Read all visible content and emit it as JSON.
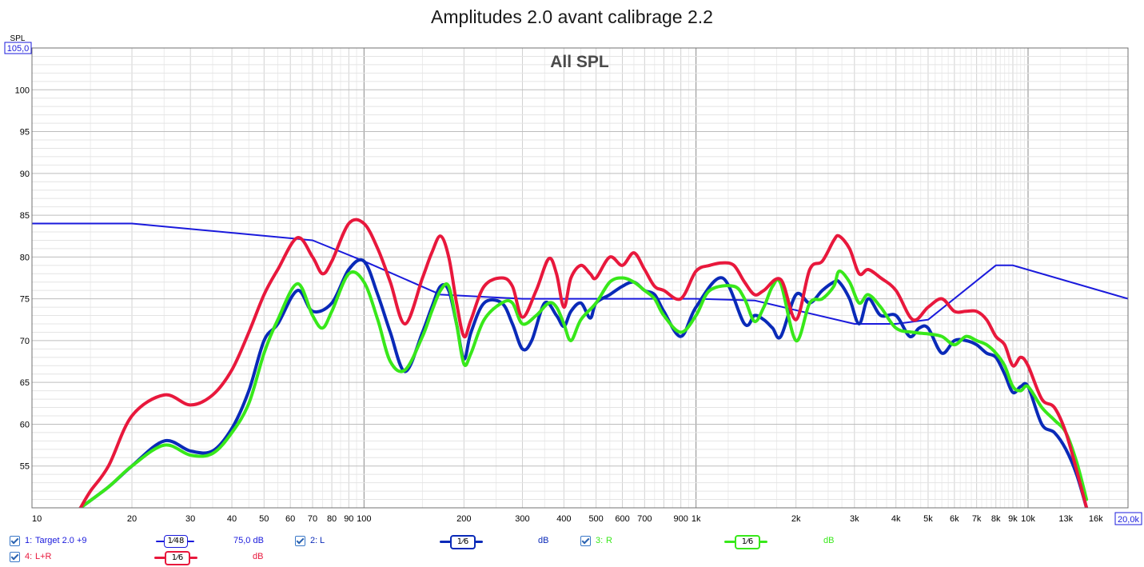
{
  "title": "Amplitudes 2.0 avant calibrage 2.2",
  "chart_data": {
    "type": "line",
    "plot_label": "All SPL",
    "ylabel": "SPL",
    "xscale": "log",
    "xlim": [
      10,
      20000
    ],
    "ylim": [
      50,
      105
    ],
    "y_top_label": "105,0",
    "x_right_label": "20,0k",
    "yticks": [
      {
        "v": 100,
        "label": "100"
      },
      {
        "v": 95,
        "label": "95"
      },
      {
        "v": 90,
        "label": "90"
      },
      {
        "v": 85,
        "label": "85"
      },
      {
        "v": 80,
        "label": "80"
      },
      {
        "v": 75,
        "label": "75"
      },
      {
        "v": 70,
        "label": "70"
      },
      {
        "v": 65,
        "label": "65"
      },
      {
        "v": 60,
        "label": "60"
      },
      {
        "v": 55,
        "label": "55"
      }
    ],
    "xticks": [
      {
        "v": 10,
        "label": "10"
      },
      {
        "v": 20,
        "label": "20"
      },
      {
        "v": 30,
        "label": "30"
      },
      {
        "v": 40,
        "label": "40"
      },
      {
        "v": 50,
        "label": "50"
      },
      {
        "v": 60,
        "label": "60"
      },
      {
        "v": 70,
        "label": "70"
      },
      {
        "v": 80,
        "label": "80"
      },
      {
        "v": 90,
        "label": "90"
      },
      {
        "v": 100,
        "label": "100"
      },
      {
        "v": 200,
        "label": "200"
      },
      {
        "v": 300,
        "label": "300"
      },
      {
        "v": 400,
        "label": "400"
      },
      {
        "v": 500,
        "label": "500"
      },
      {
        "v": 600,
        "label": "600"
      },
      {
        "v": 700,
        "label": "700"
      },
      {
        "v": 900,
        "label": "900"
      },
      {
        "v": 1000,
        "label": "1k"
      },
      {
        "v": 2000,
        "label": "2k"
      },
      {
        "v": 3000,
        "label": "3k"
      },
      {
        "v": 4000,
        "label": "4k"
      },
      {
        "v": 5000,
        "label": "5k"
      },
      {
        "v": 6000,
        "label": "6k"
      },
      {
        "v": 7000,
        "label": "7k"
      },
      {
        "v": 8000,
        "label": "8k"
      },
      {
        "v": 9000,
        "label": "9k"
      },
      {
        "v": 10000,
        "label": "10k"
      },
      {
        "v": 13000,
        "label": "13k"
      },
      {
        "v": 16000,
        "label": "16k"
      }
    ],
    "grid": true,
    "series": [
      {
        "name": "Target 2.0 +9",
        "color": "#1a1adc",
        "width": 2,
        "x": [
          10,
          20,
          70,
          100,
          170,
          300,
          1000,
          1500,
          3000,
          4000,
          5000,
          8000,
          9000,
          20000
        ],
        "y": [
          84,
          84,
          82,
          79.5,
          75.5,
          75,
          75,
          74.8,
          72,
          72,
          72.5,
          79,
          79,
          75
        ]
      },
      {
        "name": "L",
        "color": "#0a2ab8",
        "width": 4,
        "x": [
          14,
          17,
          20,
          25,
          30,
          35,
          40,
          45,
          50,
          55,
          63,
          70,
          80,
          90,
          100,
          110,
          120,
          133,
          150,
          160,
          170,
          180,
          190,
          200,
          210,
          230,
          260,
          280,
          300,
          320,
          350,
          380,
          400,
          420,
          450,
          480,
          500,
          550,
          600,
          650,
          700,
          750,
          800,
          900,
          1000,
          1200,
          1400,
          1500,
          1600,
          1700,
          1800,
          2000,
          2200,
          2400,
          2600,
          2700,
          2900,
          3100,
          3300,
          3600,
          4000,
          4400,
          4700,
          5000,
          5500,
          6000,
          6500,
          7000,
          7500,
          8000,
          8500,
          9000,
          9500,
          10000,
          11000,
          12000,
          13000,
          14000,
          15000
        ],
        "y": [
          50,
          52.5,
          55,
          58,
          56.8,
          56.8,
          59.5,
          64,
          70,
          72,
          76,
          73.5,
          74.5,
          78.5,
          79.5,
          75.5,
          71,
          66.3,
          71,
          74,
          76.5,
          76,
          72,
          67.8,
          71,
          74.5,
          74.5,
          72,
          69,
          70,
          74.5,
          73,
          71.7,
          73.5,
          74.5,
          72.7,
          74.5,
          75.5,
          76.5,
          77,
          76,
          75.5,
          73.5,
          70.5,
          74,
          77.5,
          72,
          73,
          72.5,
          71.5,
          70.5,
          75.5,
          74.5,
          76,
          77,
          77,
          75,
          72,
          75,
          73,
          73,
          70.5,
          71.5,
          71.5,
          68.5,
          70,
          70,
          69.5,
          68.5,
          68,
          66,
          63.8,
          64.5,
          64.5,
          60,
          59,
          57,
          54,
          50
        ]
      },
      {
        "name": "R",
        "color": "#38e81a",
        "width": 4,
        "x": [
          14,
          17,
          20,
          25,
          30,
          35,
          40,
          45,
          50,
          55,
          63,
          70,
          75,
          80,
          90,
          100,
          110,
          120,
          133,
          150,
          160,
          170,
          180,
          190,
          200,
          210,
          230,
          260,
          280,
          300,
          330,
          360,
          380,
          400,
          420,
          450,
          500,
          550,
          600,
          650,
          700,
          750,
          800,
          900,
          1000,
          1100,
          1300,
          1400,
          1500,
          1600,
          1700,
          1800,
          2000,
          2200,
          2400,
          2600,
          2700,
          2900,
          3100,
          3300,
          3600,
          4000,
          4500,
          5000,
          5500,
          6000,
          6500,
          7000,
          7500,
          8000,
          8500,
          9000,
          9500,
          10000,
          11000,
          12000,
          13000,
          14000,
          15000
        ],
        "y": [
          50,
          52.5,
          55,
          57.5,
          56.3,
          56.5,
          59,
          62.5,
          68.5,
          72.5,
          76.8,
          73,
          71.5,
          73.5,
          78,
          77,
          72.5,
          67.5,
          66.5,
          70.5,
          73.5,
          76,
          76.5,
          72,
          67.2,
          68.5,
          72.5,
          74.5,
          74.5,
          72,
          73,
          74.5,
          74,
          72,
          70,
          72.5,
          74.5,
          77,
          77.5,
          77,
          76,
          75,
          73,
          71,
          73,
          76,
          76.5,
          75,
          72.3,
          74,
          76.5,
          76.8,
          70,
          74.5,
          75,
          76.5,
          78.3,
          77,
          74.5,
          75.5,
          74,
          71.5,
          71,
          70.8,
          70.5,
          69.5,
          70.5,
          70,
          69.5,
          68.5,
          67,
          64.5,
          64,
          64.5,
          62,
          60.5,
          59,
          55.5,
          51
        ]
      },
      {
        "name": "L+R",
        "color": "#e8183c",
        "width": 4,
        "x": [
          14,
          15,
          17,
          20,
          25,
          30,
          35,
          40,
          45,
          50,
          55,
          63,
          70,
          75,
          80,
          90,
          100,
          110,
          120,
          133,
          150,
          160,
          170,
          180,
          190,
          200,
          210,
          230,
          260,
          280,
          300,
          330,
          360,
          380,
          400,
          420,
          450,
          480,
          500,
          550,
          600,
          650,
          700,
          750,
          800,
          900,
          1000,
          1100,
          1200,
          1300,
          1400,
          1500,
          1600,
          1800,
          2000,
          2200,
          2400,
          2600,
          2700,
          2900,
          3100,
          3300,
          3600,
          4000,
          4500,
          5000,
          5500,
          6000,
          6500,
          7000,
          7500,
          8000,
          8500,
          9000,
          9500,
          10000,
          11000,
          12000,
          13000,
          14000,
          15000
        ],
        "y": [
          50,
          52,
          55,
          61,
          63.5,
          62.3,
          63.5,
          66.5,
          71,
          75.5,
          78.5,
          82.3,
          80,
          78,
          79.5,
          84,
          84,
          81,
          77,
          72,
          77.5,
          80.5,
          82.5,
          80,
          74.5,
          70.5,
          72.5,
          76.5,
          77.5,
          76.5,
          72.8,
          76,
          79.8,
          78,
          74,
          77.5,
          79,
          78,
          77.5,
          80,
          79,
          80.5,
          78.5,
          76.5,
          76,
          75,
          78.3,
          79,
          79.3,
          79,
          77,
          75.5,
          76,
          77.3,
          72.5,
          78.5,
          79.5,
          82,
          82.5,
          81,
          78,
          78.5,
          77.5,
          76,
          72.5,
          74,
          75,
          73.5,
          73.5,
          73.5,
          72.5,
          70.5,
          69.5,
          67,
          68,
          67,
          63,
          62,
          59,
          54.5,
          50
        ]
      }
    ],
    "legend": [
      {
        "index": "1:",
        "name": "Target 2.0 +9",
        "smoothing": "1⁄48",
        "offset": "75,0 dB"
      },
      {
        "index": "2:",
        "name": "L",
        "smoothing": "1⁄6",
        "offset": "dB"
      },
      {
        "index": "3:",
        "name": "R",
        "smoothing": "1⁄6",
        "offset": "dB"
      },
      {
        "index": "4:",
        "name": "L+R",
        "smoothing": "1⁄6",
        "offset": "dB"
      }
    ]
  }
}
